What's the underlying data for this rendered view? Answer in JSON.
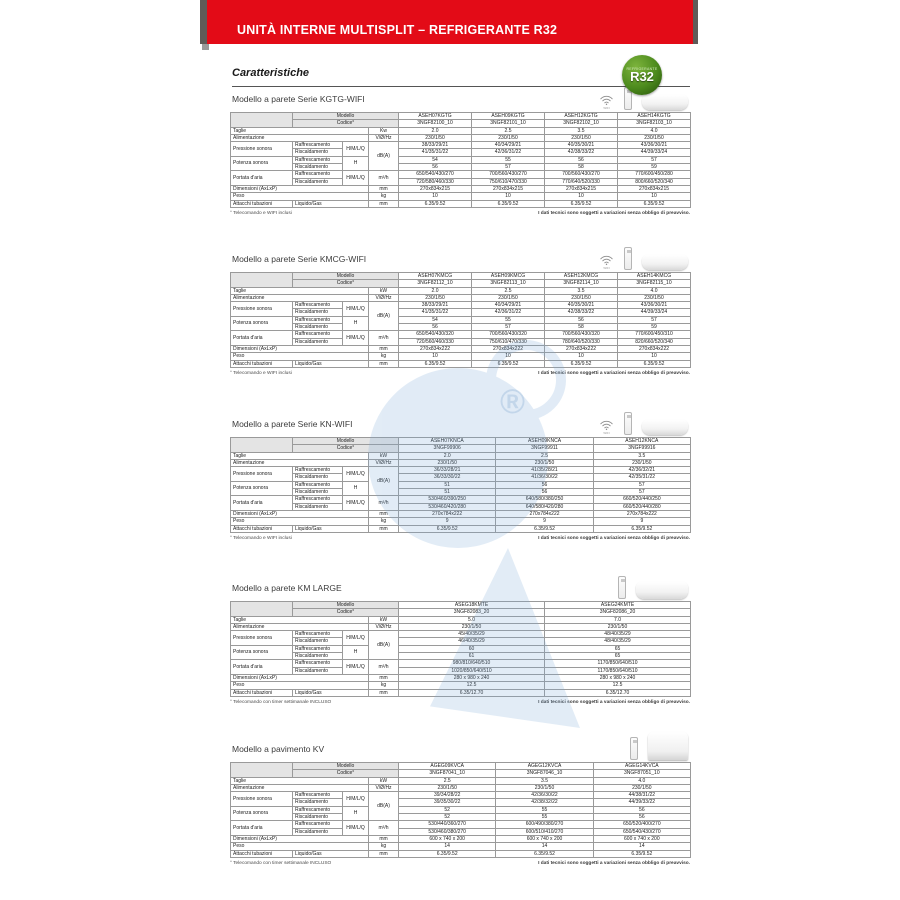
{
  "banner": {
    "title": "UNITÀ INTERNE MULTISPLIT – REFRIGERANTE R32",
    "color": "#e30b17"
  },
  "heading": "Caratteristiche",
  "badge": {
    "small_text": "REFRIGERANTE",
    "text": "R32",
    "color": "#4c8a1d"
  },
  "labels": {
    "modello": "Modello",
    "codice": "Codice°",
    "rows": {
      "taglie": "Taglie",
      "alimentazione": "Alimentazione",
      "pressione": "Pressione sonora",
      "potenza": "Potenza sonora",
      "portata": "Portata d'aria",
      "dimensioni": "Dimensioni (AxLxP)",
      "peso": "Peso",
      "attacchi": "Attacchi tubazioni"
    },
    "sub": {
      "raff": "Raffrescamento",
      "risc": "Riscaldamento",
      "liquido_gas": "Liquido/Gas"
    },
    "units": {
      "hmlq": "H/M/L/Q",
      "dba": "dB(A)",
      "h": "H",
      "airflow": "m³/h",
      "power": "V/Ø/Hz",
      "mm": "mm",
      "kg": "kg"
    },
    "wifi": "WIFI",
    "disclaimer": "I dati tecnici sono soggetti a variazioni senza obbligo di preavviso."
  },
  "sections": [
    {
      "title": "Modello a parete Serie KGTG-WIFI",
      "wifi": true,
      "unit_type": "wall",
      "taglie_unit": "Kw",
      "models": [
        "ASEH07KGTG",
        "ASEH09KGTG",
        "ASEH12KGTG",
        "ASEH14KGTG"
      ],
      "codes": [
        "3NGF82100_10",
        "3NGF82101_10",
        "3NGF82102_10",
        "3NGF82103_10"
      ],
      "taglie": [
        "2.0",
        "2.5",
        "3.5",
        "4.0"
      ],
      "alimentazione": [
        "230/1/50",
        "230/1/50",
        "230/1/50",
        "230/1/50"
      ],
      "pressione_raff": [
        "38/33/29/21",
        "40/34/29/21",
        "40/35/30/21",
        "43/36/30/21"
      ],
      "pressione_risc": [
        "41/35/31/22",
        "42/36/31/22",
        "42/38/33/22",
        "44/39/33/24"
      ],
      "potenza_raff": [
        "54",
        "55",
        "56",
        "57"
      ],
      "potenza_risc": [
        "56",
        "57",
        "58",
        "59"
      ],
      "portata_raff": [
        "650/540/430/270",
        "700/560/430/270",
        "700/560/430/270",
        "770/600/450/280"
      ],
      "portata_risc": [
        "720/580/460/330",
        "750/610/470/330",
        "770/640/520/330",
        "800/660/520/340"
      ],
      "dimensioni": [
        "270x834x215",
        "270x834x215",
        "270x834x215",
        "270x834x215"
      ],
      "peso": [
        "10",
        "10",
        "10",
        "10"
      ],
      "attacchi": [
        "6.35/9.52",
        "6.35/9.52",
        "6.35/9.52",
        "6.35/9.52"
      ],
      "note": "° Telecomando e WIFI inclusi"
    },
    {
      "title": "Modello a parete Serie KMCG-WIFI",
      "wifi": true,
      "unit_type": "wall",
      "taglie_unit": "kW",
      "models": [
        "ASEH07KMCG",
        "ASEH09KMCG",
        "ASEH12KMCG",
        "ASEH14KMCG"
      ],
      "codes": [
        "3NGF82112_10",
        "3NGF82113_10",
        "3NGF82114_10",
        "3NGF82115_10"
      ],
      "taglie": [
        "2.0",
        "2.5",
        "3.5",
        "4.0"
      ],
      "alimentazione": [
        "230/1/50",
        "230/1/50",
        "230/1/50",
        "230/1/50"
      ],
      "pressione_raff": [
        "38/33/29/21",
        "40/34/29/21",
        "40/35/30/21",
        "43/36/30/21"
      ],
      "pressione_risc": [
        "41/35/31/22",
        "42/36/31/22",
        "42/38/33/22",
        "44/39/33/24"
      ],
      "potenza_raff": [
        "54",
        "55",
        "56",
        "57"
      ],
      "potenza_risc": [
        "56",
        "57",
        "58",
        "59"
      ],
      "portata_raff": [
        "650/540/430/320",
        "700/560/430/320",
        "700/560/430/320",
        "770/600/450/310"
      ],
      "portata_risc": [
        "720/560/460/330",
        "750/610/470/330",
        "780/640/520/330",
        "820/660/520/340"
      ],
      "dimensioni": [
        "270x834x222",
        "270x834x222",
        "270x834x222",
        "270x834x222"
      ],
      "peso": [
        "10",
        "10",
        "10",
        "10"
      ],
      "attacchi": [
        "6.35/9.52",
        "6.35/9.52",
        "6.35/9.52",
        "6.35/9.52"
      ],
      "note": "° Telecomando e WIFI inclusi"
    },
    {
      "title": "Modello a parete Serie KN-WIFI",
      "wifi": true,
      "unit_type": "wall",
      "taglie_unit": "kW",
      "models": [
        "ASEH07KNCA",
        "ASEH09KNCA",
        "ASEH12KNCA"
      ],
      "codes": [
        "3NGF99906",
        "3NGF99911",
        "3NGF99916"
      ],
      "taglie": [
        "2.0",
        "2.5",
        "3.5"
      ],
      "alimentazione": [
        "230/1/50",
        "230/1/50",
        "230/1/50"
      ],
      "pressione_raff": [
        "36/33/28/21",
        "41/35/28/21",
        "42/36/32/21"
      ],
      "pressione_risc": [
        "36/33/30/22",
        "41/36/30/22",
        "42/35/31/22"
      ],
      "potenza_raff": [
        "51",
        "56",
        "57"
      ],
      "potenza_risc": [
        "51",
        "56",
        "57"
      ],
      "portata_raff": [
        "530/460/390/250",
        "640/580/380/250",
        "660/520/440/250"
      ],
      "portata_risc": [
        "530/460/420/280",
        "640/580/420/280",
        "660/520/440/280"
      ],
      "dimensioni": [
        "270x784x222",
        "270x784x222",
        "270x784x222"
      ],
      "peso": [
        "9",
        "9",
        "9"
      ],
      "attacchi": [
        "6.35/9.52",
        "6.35/9.52",
        "6.35/9.52"
      ],
      "note": "° Telecomando e WIFI inclusi"
    },
    {
      "title": "Modello a parete KM LARGE",
      "wifi": false,
      "unit_type": "wall-large",
      "taglie_unit": "kW",
      "models": [
        "ASEG18KMTE",
        "ASEG24KMTE"
      ],
      "codes": [
        "3NGF82083_20",
        "3NGF82086_20"
      ],
      "taglie": [
        "5.0",
        "7.0"
      ],
      "alimentazione": [
        "230/1/50",
        "230/1/50"
      ],
      "pressione_raff": [
        "45/40/35/29",
        "48/40/35/29"
      ],
      "pressione_risc": [
        "46/40/35/29",
        "48/40/35/29"
      ],
      "potenza_raff": [
        "60",
        "65"
      ],
      "potenza_risc": [
        "61",
        "65"
      ],
      "portata_raff": [
        "980/810/640/510",
        "1170/850/640/510"
      ],
      "portata_risc": [
        "1020/850/640/510",
        "1170/850/640/510"
      ],
      "dimensioni": [
        "280 x 980 x 240",
        "280 x 980 x 240"
      ],
      "peso": [
        "12.5",
        "12.5"
      ],
      "attacchi": [
        "6.35/12.70",
        "6.35/12.70"
      ],
      "note": "° Telecomando con timer settimanale INCLUSO"
    },
    {
      "title": "Modello a pavimento KV",
      "wifi": false,
      "unit_type": "floor",
      "taglie_unit": "kW",
      "models": [
        "AGEG09KVCA",
        "AGEG12KVCA",
        "AGEG14KVCA"
      ],
      "codes": [
        "3NGF87041_10",
        "3NGF87046_10",
        "3NGF87051_10"
      ],
      "taglie": [
        "2.5",
        "3.5",
        "4.0"
      ],
      "alimentazione": [
        "230/1/50",
        "230/1/50",
        "230/1/50"
      ],
      "pressione_raff": [
        "39/34/28/22",
        "42/36/30/22",
        "44/38/31/22"
      ],
      "pressione_risc": [
        "39/35/30/22",
        "42/38/32/22",
        "44/39/33/22"
      ],
      "potenza_raff": [
        "52",
        "55",
        "56"
      ],
      "potenza_risc": [
        "52",
        "55",
        "56"
      ],
      "portata_raff": [
        "530/440/360/270",
        "600/490/380/270",
        "650/520/400/270"
      ],
      "portata_risc": [
        "530/460/380/270",
        "600/510/410/270",
        "650/540/430/270"
      ],
      "dimensioni": [
        "600 x 740 x 200",
        "600 x 740 x 200",
        "600 x 740 x 200"
      ],
      "peso": [
        "14",
        "14",
        "14"
      ],
      "attacchi": [
        "6.35/9.52",
        "6.35/9.52",
        "6.35/9.52"
      ],
      "note": "° Telecomando con timer settimanale INCLUSO"
    }
  ]
}
